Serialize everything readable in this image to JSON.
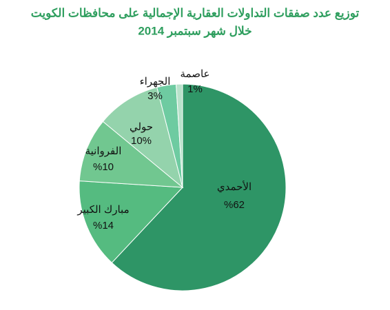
{
  "chart_data": {
    "type": "pie",
    "title": "توزيع عدد صفقات التداولات العقارية الإجمالية على محافظات الكويت",
    "subtitle": "خلال شهر  سبتمبر 2014",
    "categories": [
      "الأحمدي",
      "مبارك الكبير",
      "الفروانية",
      "حولي",
      "الجهراء",
      "عاصمة"
    ],
    "values": [
      62,
      14,
      10,
      10,
      3,
      1
    ],
    "value_labels": [
      "%62",
      "%14",
      "%10",
      "10%",
      "3%",
      "1%"
    ],
    "colors": [
      "#2e9566",
      "#55bb80",
      "#71c790",
      "#94d3ac",
      "#6ecba1",
      "#b9e2cb"
    ]
  }
}
